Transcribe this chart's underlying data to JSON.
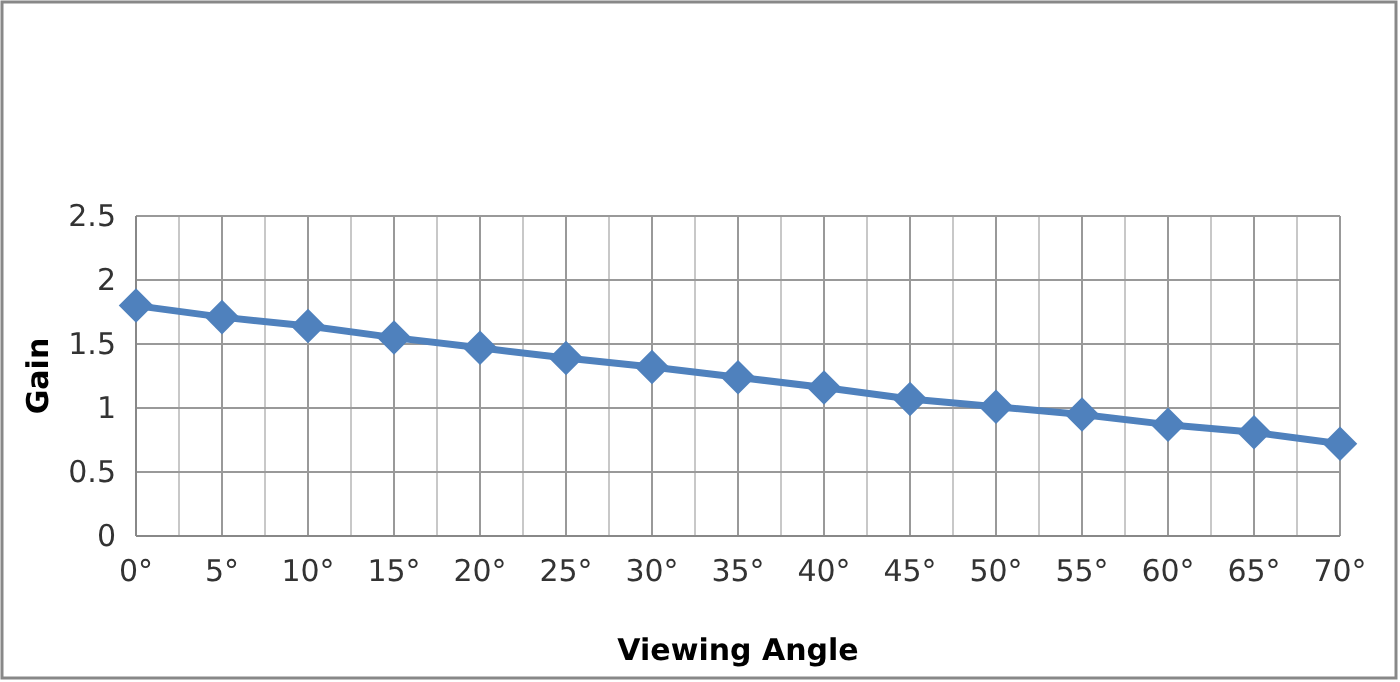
{
  "chart_data": {
    "type": "line",
    "xlabel": "Viewing Angle",
    "ylabel": "Gain",
    "categories": [
      "0°",
      "5°",
      "10°",
      "15°",
      "20°",
      "25°",
      "30°",
      "35°",
      "40°",
      "45°",
      "50°",
      "55°",
      "60°",
      "65°",
      "70°"
    ],
    "series": [
      {
        "color": "#4f81bd",
        "values": [
          1.8,
          1.71,
          1.64,
          1.55,
          1.47,
          1.39,
          1.32,
          1.24,
          1.16,
          1.07,
          1.01,
          0.95,
          0.87,
          0.81,
          0.72
        ]
      }
    ],
    "ylim": [
      0,
      2.5
    ],
    "yticks": [
      0,
      0.5,
      1,
      1.5,
      2,
      2.5
    ],
    "grid": true,
    "marker": "diamond",
    "line_style": "solid"
  }
}
